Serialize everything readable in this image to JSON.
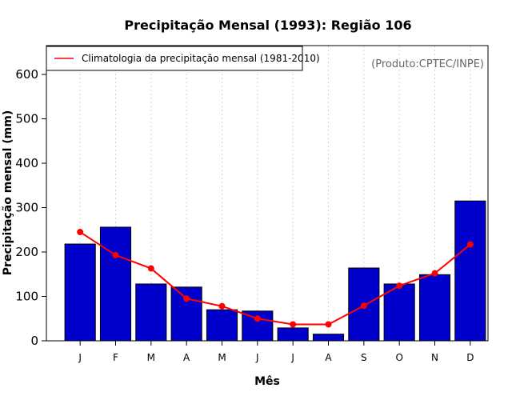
{
  "chart_data": {
    "type": "bar",
    "title": "Precipitação Mensal (1993): Região 106",
    "xlabel": "Mês",
    "ylabel": "Precipitação mensal (mm)",
    "categories": [
      "J",
      "F",
      "M",
      "A",
      "M",
      "J",
      "J",
      "A",
      "S",
      "O",
      "N",
      "D"
    ],
    "series": [
      {
        "name": "Precipitação mensal (1993)",
        "type": "bar",
        "color": "#0000cc",
        "values": [
          218,
          256,
          128,
          121,
          70,
          67,
          29,
          15,
          164,
          128,
          149,
          315
        ]
      },
      {
        "name": "Climatologia da precipitação mensal (1981-2010)",
        "type": "line",
        "color": "#ff0000",
        "values": [
          245,
          193,
          163,
          95,
          78,
          50,
          37,
          37,
          79,
          124,
          152,
          217
        ]
      }
    ],
    "yticks": [
      0,
      100,
      200,
      300,
      400,
      500,
      600
    ],
    "ylim": [
      0,
      665
    ],
    "grid": "vertical-dotted",
    "legend": {
      "position": "top-left",
      "entries": [
        "Climatologia da precipitação mensal (1981-2010)"
      ]
    },
    "annotation": "(Produto:CPTEC/INPE)"
  }
}
